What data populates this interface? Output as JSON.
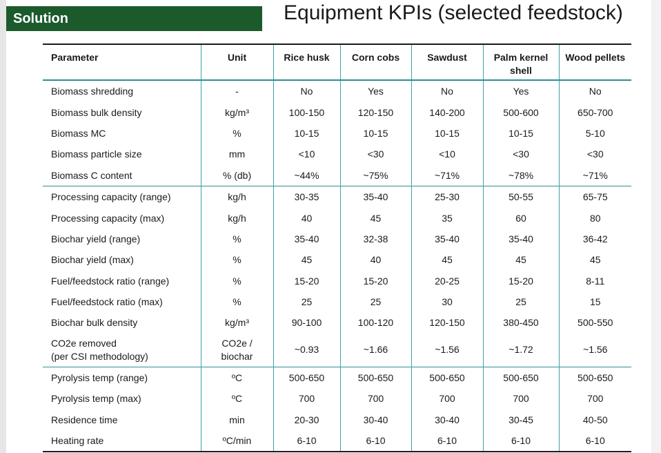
{
  "header": {
    "section_label": "Solution",
    "title": "Equipment KPIs (selected feedstock)"
  },
  "table": {
    "columns": [
      "Parameter",
      "Unit",
      "Rice husk",
      "Corn cobs",
      "Sawdust",
      "Palm kernel shell",
      "Wood pellets"
    ],
    "rows": [
      [
        "Biomass shredding",
        "-",
        "No",
        "Yes",
        "No",
        "Yes",
        "No"
      ],
      [
        "Biomass bulk density",
        "kg/m³",
        "100-150",
        "120-150",
        "140-200",
        "500-600",
        "650-700"
      ],
      [
        "Biomass MC",
        "%",
        "10-15",
        "10-15",
        "10-15",
        "10-15",
        "5-10"
      ],
      [
        "Biomass particle size",
        "mm",
        "<10",
        "<30",
        "<10",
        "<30",
        "<30"
      ],
      [
        "Biomass C content",
        "% (db)",
        "~44%",
        "~75%",
        "~71%",
        "~78%",
        "~71%"
      ],
      [
        "Processing capacity (range)",
        "kg/h",
        "30-35",
        "35-40",
        "25-30",
        "50-55",
        "65-75"
      ],
      [
        "Processing capacity (max)",
        "kg/h",
        "40",
        "45",
        "35",
        "60",
        "80"
      ],
      [
        "Biochar yield (range)",
        "%",
        "35-40",
        "32-38",
        "35-40",
        "35-40",
        "36-42"
      ],
      [
        "Biochar yield (max)",
        "%",
        "45",
        "40",
        "45",
        "45",
        "45"
      ],
      [
        "Fuel/feedstock ratio (range)",
        "%",
        "15-20",
        "15-20",
        "20-25",
        "15-20",
        "8-11"
      ],
      [
        "Fuel/feedstock ratio (max)",
        "%",
        "25",
        "25",
        "30",
        "25",
        "15"
      ],
      [
        "Biochar bulk density",
        "kg/m³",
        "90-100",
        "100-120",
        "120-150",
        "380-450",
        "500-550"
      ],
      [
        "CO2e removed\n(per CSI methodology)",
        "CO2e /\nbiochar",
        "~0.93",
        "~1.66",
        "~1.56",
        "~1.72",
        "~1.56"
      ],
      [
        "Pyrolysis temp (range)",
        "ºC",
        "500-650",
        "500-650",
        "500-650",
        "500-650",
        "500-650"
      ],
      [
        "Pyrolysis temp (max)",
        "ºC",
        "700",
        "700",
        "700",
        "700",
        "700"
      ],
      [
        "Residence time",
        "min",
        "20-30",
        "30-40",
        "30-40",
        "30-45",
        "40-50"
      ],
      [
        "Heating rate",
        "ºC/min",
        "6-10",
        "6-10",
        "6-10",
        "6-10",
        "6-10"
      ]
    ]
  },
  "colors": {
    "badge_green": "#1c5a2c",
    "rule_teal": "#2b8f95",
    "divider_teal": "#3aa3a8"
  }
}
